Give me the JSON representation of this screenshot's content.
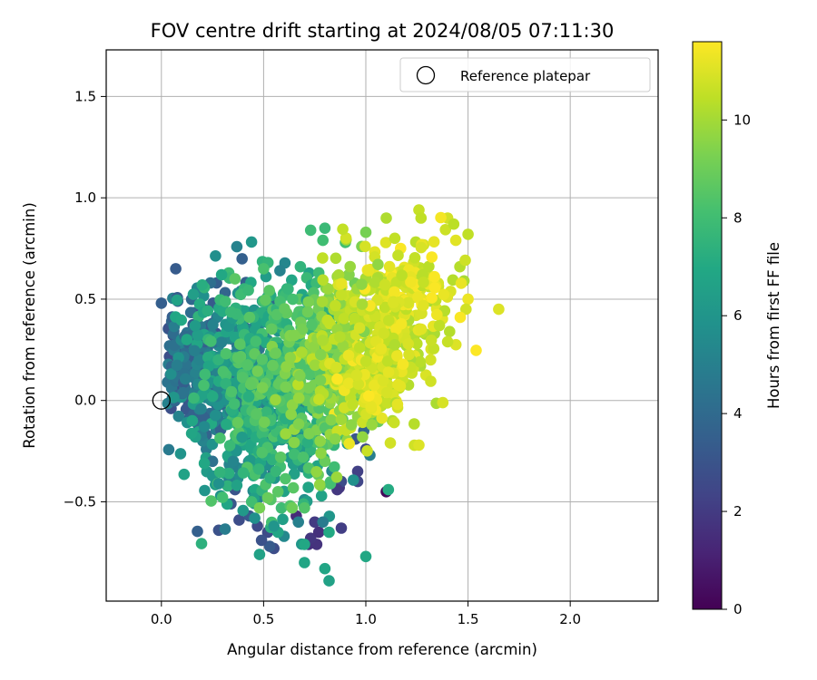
{
  "chart_data": {
    "type": "scatter",
    "title": "FOV centre drift starting at 2024/08/05 07:11:30",
    "xlabel": "Angular distance from reference (arcmin)",
    "ylabel": "Rotation from reference (arcmin)",
    "xlim": [
      -0.27,
      2.43
    ],
    "ylim": [
      -0.99,
      1.73
    ],
    "xticks": [
      0.0,
      0.5,
      1.0,
      1.5,
      2.0
    ],
    "xtick_labels": [
      "0.0",
      "0.5",
      "1.0",
      "1.5",
      "2.0"
    ],
    "yticks": [
      -0.5,
      0.0,
      0.5,
      1.0,
      1.5
    ],
    "ytick_labels": [
      "−0.5",
      "0.0",
      "0.5",
      "1.0",
      "1.5"
    ],
    "grid": true,
    "legend": {
      "position": "top-right",
      "entries": [
        "Reference platepar"
      ]
    },
    "reference_point": {
      "x": 0.0,
      "y": 0.0
    },
    "colorbar": {
      "label": "Hours from first FF file",
      "colormap": "viridis",
      "range": [
        0,
        11.6
      ],
      "ticks": [
        0,
        2,
        4,
        6,
        8,
        10
      ],
      "tick_labels": [
        "0",
        "2",
        "4",
        "6",
        "8",
        "10"
      ]
    },
    "points": [
      [
        0.0,
        0.48,
        3.5
      ],
      [
        0.07,
        0.65,
        3.3
      ],
      [
        0.08,
        0.49,
        3.5
      ],
      [
        0.05,
        0.39,
        3.8
      ],
      [
        0.04,
        0.27,
        4.2
      ],
      [
        0.03,
        0.09,
        4.4
      ],
      [
        0.05,
        0.06,
        4.6
      ],
      [
        0.06,
        0.33,
        4.1
      ],
      [
        0.1,
        0.25,
        4.5
      ],
      [
        0.12,
        0.15,
        4.3
      ],
      [
        0.16,
        0.04,
        5.0
      ],
      [
        0.18,
        -0.12,
        4.3
      ],
      [
        0.22,
        -0.24,
        4.8
      ],
      [
        0.21,
        -0.31,
        6.9
      ],
      [
        0.2,
        0.57,
        7.2
      ],
      [
        0.24,
        0.58,
        4.2
      ],
      [
        0.27,
        0.58,
        3.5
      ],
      [
        0.3,
        0.44,
        7.1
      ],
      [
        0.36,
        0.6,
        8.6
      ],
      [
        0.39,
        0.54,
        3.8
      ],
      [
        0.5,
        0.65,
        8.2
      ],
      [
        0.58,
        0.64,
        5.1
      ],
      [
        0.62,
        0.55,
        7.6
      ],
      [
        0.68,
        0.66,
        7.5
      ],
      [
        0.73,
        0.84,
        7.9
      ],
      [
        0.8,
        0.85,
        7.8
      ],
      [
        0.79,
        0.79,
        8.0
      ],
      [
        0.77,
        0.63,
        7.9
      ],
      [
        0.9,
        0.78,
        8.1
      ],
      [
        0.98,
        0.76,
        9.3
      ],
      [
        1.0,
        0.83,
        9.2
      ],
      [
        1.1,
        0.9,
        10.2
      ],
      [
        1.26,
        0.94,
        10.6
      ],
      [
        1.27,
        0.9,
        10.5
      ],
      [
        1.4,
        0.9,
        10.8
      ],
      [
        1.43,
        0.87,
        10.4
      ],
      [
        1.5,
        0.82,
        10.5
      ],
      [
        1.44,
        0.79,
        11.1
      ],
      [
        1.46,
        0.66,
        10.3
      ],
      [
        1.48,
        0.59,
        10.1
      ],
      [
        1.5,
        0.5,
        11.3
      ],
      [
        1.49,
        0.45,
        10.8
      ],
      [
        1.65,
        0.45,
        11.0
      ],
      [
        1.41,
        0.34,
        10.3
      ],
      [
        1.36,
        0.37,
        10.5
      ],
      [
        1.4,
        0.29,
        10.6
      ],
      [
        1.25,
        0.28,
        10.4
      ],
      [
        1.2,
        0.3,
        10.7
      ],
      [
        1.26,
        -0.22,
        11.0
      ],
      [
        1.12,
        -0.21,
        10.8
      ],
      [
        1.13,
        -0.1,
        10.2
      ],
      [
        1.02,
        -0.27,
        4.9
      ],
      [
        1.0,
        -0.24,
        2.6
      ],
      [
        0.95,
        -0.19,
        3.1
      ],
      [
        0.99,
        -0.15,
        3.8
      ],
      [
        1.1,
        -0.45,
        0.2
      ],
      [
        1.11,
        -0.44,
        7.1
      ],
      [
        0.96,
        -0.35,
        2.2
      ],
      [
        0.96,
        -0.4,
        2.4
      ],
      [
        0.88,
        -0.4,
        2.7
      ],
      [
        0.86,
        -0.44,
        1.9
      ],
      [
        0.87,
        -0.43,
        1.8
      ],
      [
        0.88,
        -0.63,
        2.1
      ],
      [
        0.79,
        -0.6,
        4.8
      ],
      [
        0.82,
        -0.65,
        7.0
      ],
      [
        0.75,
        -0.6,
        2.0
      ],
      [
        0.77,
        -0.65,
        1.6
      ],
      [
        0.73,
        -0.68,
        1.8
      ],
      [
        0.76,
        -0.71,
        1.7
      ],
      [
        0.72,
        -0.71,
        1.6
      ],
      [
        0.66,
        -0.57,
        1.4
      ],
      [
        0.67,
        -0.6,
        5.0
      ],
      [
        0.7,
        -0.71,
        6.9
      ],
      [
        0.7,
        -0.8,
        6.8
      ],
      [
        0.6,
        -0.67,
        5.4
      ],
      [
        0.57,
        -0.65,
        6.8
      ],
      [
        0.55,
        -0.62,
        6.0
      ],
      [
        0.52,
        -0.65,
        2.6
      ],
      [
        0.55,
        -0.73,
        2.7
      ],
      [
        0.48,
        -0.76,
        6.6
      ],
      [
        0.53,
        -0.72,
        3.3
      ],
      [
        0.49,
        -0.69,
        2.9
      ],
      [
        0.47,
        -0.62,
        2.6
      ],
      [
        0.43,
        -0.57,
        3.2
      ],
      [
        0.38,
        -0.59,
        2.7
      ],
      [
        0.36,
        -0.44,
        3.0
      ],
      [
        0.34,
        -0.51,
        3.1
      ],
      [
        0.28,
        -0.64,
        2.9
      ],
      [
        0.28,
        -0.41,
        5.8
      ],
      [
        0.29,
        -0.47,
        5.9
      ],
      [
        0.33,
        -0.36,
        7.3
      ],
      [
        0.25,
        -0.3,
        4.3
      ],
      [
        0.22,
        -0.17,
        3.7
      ],
      [
        0.8,
        -0.83,
        6.8
      ],
      [
        0.82,
        -0.89,
        6.6
      ],
      [
        1.0,
        -0.77,
        6.9
      ],
      [
        0.7,
        -0.53,
        8.4
      ],
      [
        0.64,
        -0.53,
        9.0
      ],
      [
        0.63,
        -0.52,
        8.4
      ],
      [
        0.57,
        -0.45,
        8.6
      ],
      [
        0.52,
        -0.48,
        8.9
      ],
      [
        0.48,
        -0.53,
        9.2
      ],
      [
        0.78,
        -0.42,
        8.8
      ],
      [
        0.8,
        -0.3,
        8.9
      ],
      [
        0.85,
        -0.19,
        9.5
      ],
      [
        0.93,
        -0.12,
        9.6
      ],
      [
        1.03,
        -0.12,
        9.8
      ],
      [
        1.03,
        -0.06,
        10.1
      ],
      [
        0.96,
        -0.08,
        9.7
      ],
      [
        0.89,
        -0.04,
        9.7
      ],
      [
        0.85,
        -0.1,
        9.8
      ]
    ],
    "cloud": {
      "description_hidden": true,
      "clusters": [
        {
          "cx": 0.15,
          "cy": 0.2,
          "sx": 0.08,
          "sy": 0.14,
          "n": 120,
          "hmin": 2.6,
          "hmax": 5.2
        },
        {
          "cx": 0.3,
          "cy": 0.1,
          "sx": 0.12,
          "sy": 0.22,
          "n": 200,
          "hmin": 3.2,
          "hmax": 7.2
        },
        {
          "cx": 0.45,
          "cy": 0.0,
          "sx": 0.14,
          "sy": 0.28,
          "n": 220,
          "hmin": 4.8,
          "hmax": 8.4
        },
        {
          "cx": 0.55,
          "cy": 0.22,
          "sx": 0.13,
          "sy": 0.2,
          "n": 200,
          "hmin": 6.6,
          "hmax": 8.9
        },
        {
          "cx": 0.6,
          "cy": -0.2,
          "sx": 0.13,
          "sy": 0.18,
          "n": 140,
          "hmin": 5.4,
          "hmax": 8.6
        },
        {
          "cx": 0.75,
          "cy": 0.12,
          "sx": 0.12,
          "sy": 0.2,
          "n": 170,
          "hmin": 8.2,
          "hmax": 9.9
        },
        {
          "cx": 0.9,
          "cy": 0.25,
          "sx": 0.12,
          "sy": 0.2,
          "n": 170,
          "hmin": 9.2,
          "hmax": 10.6
        },
        {
          "cx": 1.1,
          "cy": 0.35,
          "sx": 0.13,
          "sy": 0.18,
          "n": 190,
          "hmin": 10.0,
          "hmax": 11.3
        },
        {
          "cx": 1.2,
          "cy": 0.55,
          "sx": 0.12,
          "sy": 0.14,
          "n": 120,
          "hmin": 10.3,
          "hmax": 11.6
        },
        {
          "cx": 1.02,
          "cy": 0.07,
          "sx": 0.12,
          "sy": 0.12,
          "n": 80,
          "hmin": 10.4,
          "hmax": 11.6
        }
      ]
    }
  }
}
